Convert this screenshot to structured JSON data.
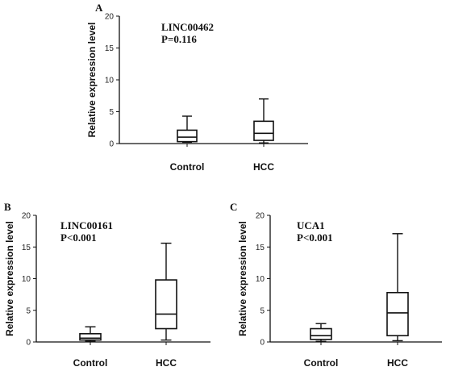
{
  "chart_data": [
    {
      "type": "boxplot",
      "panel": "A",
      "annotation_lines": [
        "LINC00462",
        "P=0.116"
      ],
      "ylabel": "Relative expression level",
      "ylim": [
        0,
        20
      ],
      "yticks": [
        0,
        5,
        10,
        15,
        20
      ],
      "categories": [
        "Control",
        "HCC"
      ],
      "boxes": [
        {
          "whisker_low": 0.2,
          "q1": 0.3,
          "median": 1.0,
          "q3": 2.1,
          "whisker_high": 4.3
        },
        {
          "whisker_low": 0.1,
          "q1": 0.5,
          "median": 1.6,
          "q3": 3.5,
          "whisker_high": 7.0
        }
      ],
      "grid": false
    },
    {
      "type": "boxplot",
      "panel": "B",
      "annotation_lines": [
        "LINC00161",
        "P<0.001"
      ],
      "ylabel": "Relative expression level",
      "ylim": [
        0,
        20
      ],
      "yticks": [
        0,
        5,
        10,
        15,
        20
      ],
      "categories": [
        "Control",
        "HCC"
      ],
      "boxes": [
        {
          "whisker_low": 0.1,
          "q1": 0.3,
          "median": 0.6,
          "q3": 1.3,
          "whisker_high": 2.4
        },
        {
          "whisker_low": 0.3,
          "q1": 2.1,
          "median": 4.4,
          "q3": 9.8,
          "whisker_high": 15.6
        }
      ],
      "grid": false
    },
    {
      "type": "boxplot",
      "panel": "C",
      "annotation_lines": [
        "UCA1",
        "P<0.001"
      ],
      "ylabel": "Relative expression level",
      "ylim": [
        0,
        20
      ],
      "yticks": [
        0,
        5,
        10,
        15,
        20
      ],
      "categories": [
        "Control",
        "HCC"
      ],
      "boxes": [
        {
          "whisker_low": 0.1,
          "q1": 0.4,
          "median": 1.0,
          "q3": 2.1,
          "whisker_high": 2.9
        },
        {
          "whisker_low": 0.2,
          "q1": 1.0,
          "median": 4.6,
          "q3": 7.8,
          "whisker_high": 17.1
        }
      ],
      "grid": false
    }
  ]
}
